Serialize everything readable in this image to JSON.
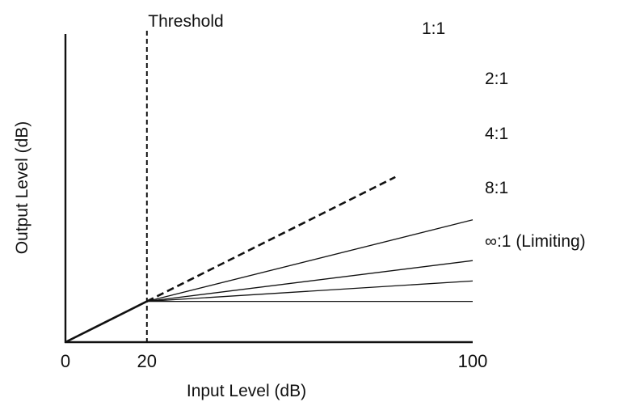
{
  "chart_data": {
    "type": "line",
    "title": "",
    "xlabel": "Input Level (dB)",
    "ylabel": "Output Level (dB)",
    "x_ticks": [
      "0",
      "20",
      "100"
    ],
    "xlim": [
      0,
      100
    ],
    "ylim": [
      0,
      100
    ],
    "grid": false,
    "legend": "none",
    "threshold": {
      "x": 20,
      "label": "Threshold"
    },
    "below_threshold_line": {
      "points": [
        [
          0,
          0
        ],
        [
          20,
          20
        ]
      ]
    },
    "series": [
      {
        "name": "1:1",
        "ratio": 1,
        "style": "dashed",
        "points": [
          [
            20,
            20
          ],
          [
            81,
            81
          ]
        ]
      },
      {
        "name": "2:1",
        "ratio": 2,
        "style": "solid",
        "points": [
          [
            20,
            20
          ],
          [
            100,
            60
          ]
        ]
      },
      {
        "name": "4:1",
        "ratio": 4,
        "style": "solid",
        "points": [
          [
            20,
            20
          ],
          [
            100,
            40
          ]
        ]
      },
      {
        "name": "8:1",
        "ratio": 8,
        "style": "solid",
        "points": [
          [
            20,
            20
          ],
          [
            100,
            30
          ]
        ]
      },
      {
        "name": "∞:1 (Limiting)",
        "ratio": "infinity",
        "style": "solid",
        "points": [
          [
            20,
            20
          ],
          [
            100,
            20
          ]
        ]
      }
    ],
    "colors": {
      "lines": "#111111",
      "background": "#ffffff"
    }
  }
}
